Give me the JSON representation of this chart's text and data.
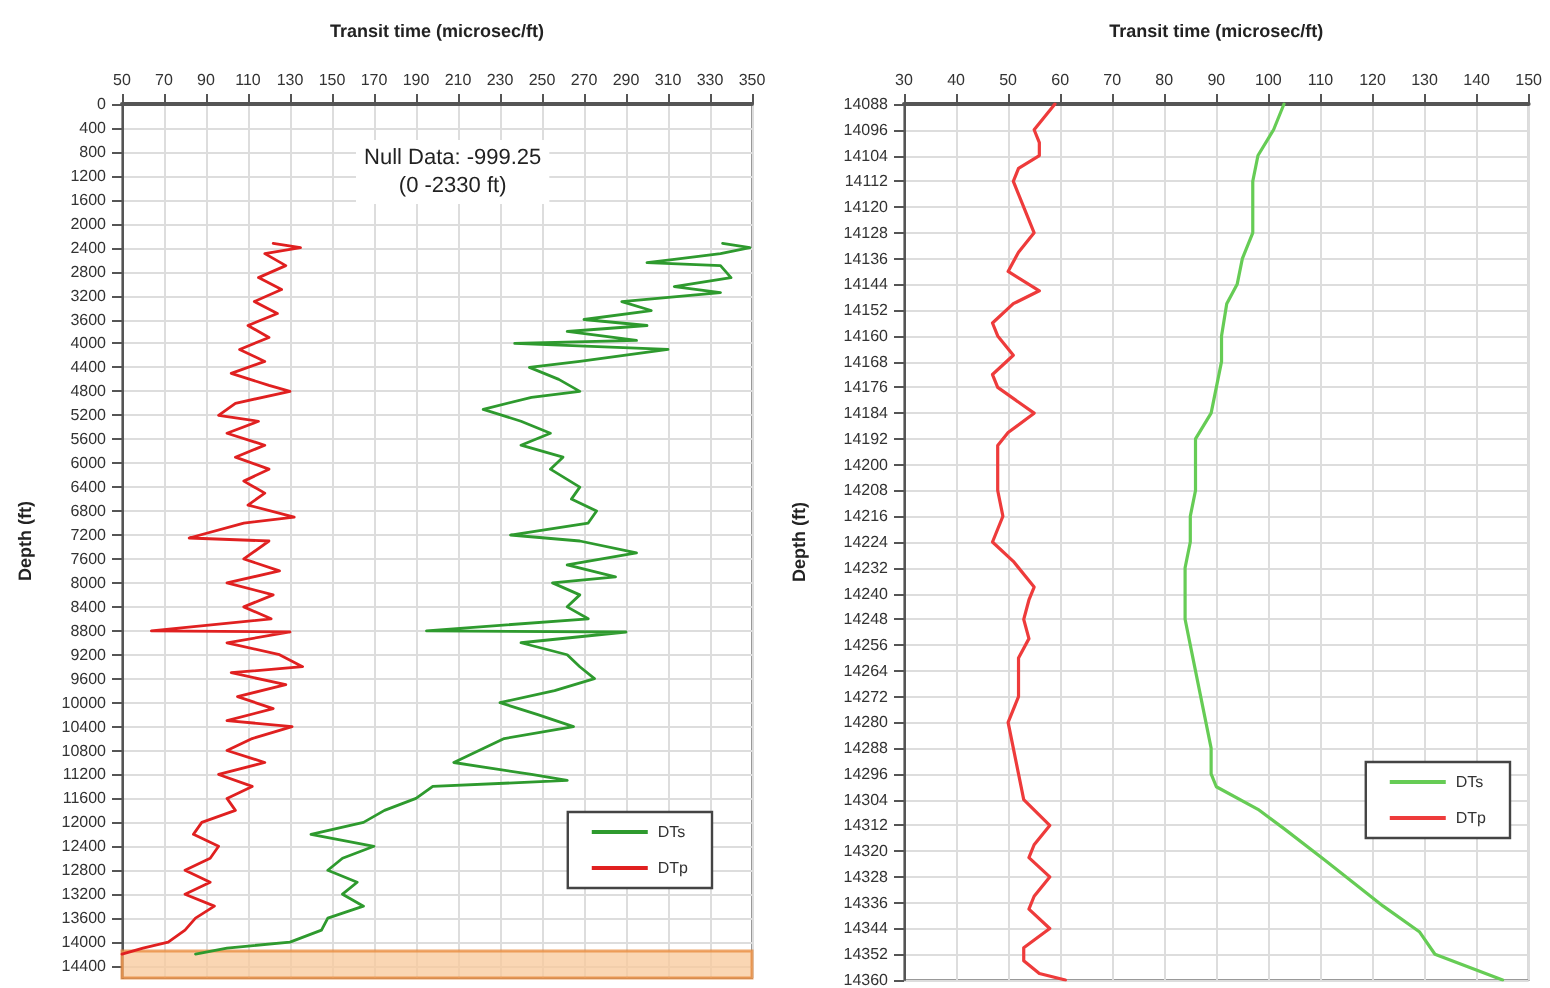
{
  "chart_data": [
    {
      "type": "line",
      "xlabel": "Transit time (microsec/ft)",
      "ylabel": "Depth (ft)",
      "xlim": [
        50,
        350
      ],
      "xticks": [
        50,
        70,
        90,
        110,
        130,
        150,
        170,
        190,
        210,
        230,
        250,
        270,
        290,
        310,
        330,
        350
      ],
      "ylim": [
        14600,
        0
      ],
      "yticks": [
        0,
        400,
        800,
        1200,
        1600,
        2000,
        2400,
        2800,
        3200,
        3600,
        4000,
        4400,
        4800,
        5200,
        5600,
        6000,
        6400,
        6800,
        7200,
        7600,
        8000,
        8400,
        8800,
        9200,
        9600,
        10000,
        10400,
        10800,
        11200,
        11600,
        12000,
        12400,
        12800,
        13200,
        13600,
        14000,
        14400
      ],
      "grid": true,
      "legend": "bottom right",
      "marker": "none",
      "line_style": "solid",
      "annotations": [
        "Null Data: -999.25\n(0 -2330 ft)"
      ],
      "bands": [
        {
          "axis": "y",
          "from": 14150,
          "to": 14600,
          "label": null,
          "color": "#f8c89a"
        }
      ],
      "series": [
        {
          "name": "DTs",
          "color": "#2e9a2e",
          "x": [
            336,
            349,
            335,
            312,
            300,
            335,
            340,
            313,
            335,
            288,
            302,
            270,
            300,
            262,
            295,
            237,
            310,
            268,
            244,
            258,
            268,
            245,
            222,
            240,
            254,
            240,
            260,
            254,
            268,
            264,
            276,
            272,
            235,
            268,
            295,
            262,
            285,
            255,
            268,
            262,
            272,
            195,
            290,
            240,
            262,
            268,
            275,
            256,
            230,
            248,
            265,
            232,
            220,
            208,
            245,
            262,
            198,
            190,
            175,
            165,
            140,
            170,
            155,
            148,
            162,
            155,
            165,
            148,
            145,
            130,
            100,
            85
          ],
          "values": [
            2330,
            2400,
            2500,
            2600,
            2650,
            2700,
            2900,
            3050,
            3150,
            3300,
            3450,
            3600,
            3700,
            3800,
            3950,
            4000,
            4100,
            4300,
            4400,
            4600,
            4800,
            4900,
            5100,
            5300,
            5500,
            5700,
            5900,
            6100,
            6400,
            6600,
            6800,
            7000,
            7200,
            7300,
            7500,
            7700,
            7900,
            8000,
            8200,
            8400,
            8600,
            8800,
            8820,
            9000,
            9200,
            9400,
            9600,
            9800,
            10000,
            10200,
            10400,
            10600,
            10800,
            11000,
            11200,
            11300,
            11400,
            11600,
            11800,
            12000,
            12200,
            12400,
            12600,
            12800,
            13000,
            13200,
            13400,
            13600,
            13800,
            14000,
            14100,
            14200
          ]
        },
        {
          "name": "DTp",
          "color": "#e02020",
          "x": [
            122,
            135,
            118,
            128,
            115,
            126,
            113,
            124,
            110,
            120,
            106,
            118,
            102,
            120,
            130,
            104,
            96,
            115,
            100,
            118,
            104,
            120,
            108,
            118,
            110,
            132,
            108,
            82,
            120,
            108,
            125,
            100,
            122,
            108,
            121,
            64,
            130,
            100,
            125,
            136,
            102,
            128,
            105,
            122,
            100,
            131,
            112,
            100,
            118,
            96,
            112,
            100,
            104,
            88,
            84,
            96,
            92,
            80,
            92,
            80,
            94,
            85,
            80,
            72,
            60,
            50
          ],
          "values": [
            2330,
            2400,
            2500,
            2700,
            2900,
            3100,
            3300,
            3500,
            3700,
            3900,
            4100,
            4300,
            4500,
            4700,
            4800,
            5000,
            5200,
            5300,
            5500,
            5700,
            5900,
            6100,
            6300,
            6500,
            6700,
            6900,
            7000,
            7250,
            7300,
            7600,
            7800,
            8000,
            8200,
            8400,
            8600,
            8800,
            8820,
            9000,
            9200,
            9400,
            9500,
            9700,
            9900,
            10100,
            10300,
            10400,
            10600,
            10800,
            11000,
            11200,
            11400,
            11600,
            11800,
            12000,
            12200,
            12400,
            12600,
            12800,
            13000,
            13200,
            13400,
            13600,
            13800,
            14000,
            14100,
            14200
          ]
        }
      ]
    },
    {
      "type": "line",
      "xlabel": "Transit time (microsec/ft)",
      "ylabel": "Depth (ft)",
      "xlim": [
        30,
        150
      ],
      "xticks": [
        30,
        40,
        50,
        60,
        70,
        80,
        90,
        100,
        110,
        120,
        130,
        140,
        150
      ],
      "ylim": [
        14360,
        14088
      ],
      "yticks": [
        14088,
        14096,
        14104,
        14112,
        14120,
        14128,
        14136,
        14144,
        14152,
        14160,
        14168,
        14176,
        14184,
        14192,
        14200,
        14208,
        14216,
        14224,
        14232,
        14240,
        14248,
        14256,
        14264,
        14272,
        14280,
        14288,
        14296,
        14304,
        14312,
        14320,
        14328,
        14336,
        14344,
        14352,
        14360
      ],
      "grid": true,
      "legend": "bottom right",
      "marker": "none",
      "line_style": "solid",
      "series": [
        {
          "name": "DTs",
          "color": "#66cc55",
          "x": [
            103,
            101,
            98,
            97,
            97,
            97,
            95,
            94,
            92,
            91,
            91,
            90,
            89,
            86,
            86,
            86,
            85,
            85,
            84,
            84,
            84,
            85,
            86,
            87,
            88,
            89,
            89,
            90,
            98,
            103,
            111,
            122,
            129,
            132,
            145
          ],
          "values": [
            14088,
            14096,
            14104,
            14112,
            14120,
            14128,
            14136,
            14144,
            14150,
            14160,
            14168,
            14176,
            14184,
            14192,
            14200,
            14208,
            14216,
            14224,
            14232,
            14240,
            14248,
            14256,
            14264,
            14272,
            14280,
            14288,
            14296,
            14300,
            14307,
            14313,
            14323,
            14337,
            14345,
            14352,
            14360
          ]
        },
        {
          "name": "DTp",
          "color": "#ee3b3b",
          "x": [
            59,
            55,
            56,
            56,
            52,
            51,
            53,
            55,
            52,
            50,
            56,
            51,
            47,
            48,
            51,
            47,
            48,
            55,
            50,
            48,
            48,
            48,
            49,
            47,
            51,
            55,
            54,
            53,
            54,
            52,
            52,
            50,
            51,
            52,
            53,
            58,
            55,
            54,
            58,
            55,
            54,
            58,
            53,
            53,
            56,
            61
          ],
          "values": [
            14088,
            14096,
            14100,
            14104,
            14108,
            14112,
            14120,
            14128,
            14134,
            14140,
            14146,
            14150,
            14156,
            14160,
            14166,
            14172,
            14176,
            14184,
            14190,
            14194,
            14200,
            14208,
            14216,
            14224,
            14230,
            14238,
            14242,
            14248,
            14254,
            14260,
            14272,
            14280,
            14288,
            14296,
            14304,
            14312,
            14318,
            14322,
            14328,
            14334,
            14338,
            14344,
            14350,
            14354,
            14358,
            14360
          ]
        }
      ]
    }
  ]
}
